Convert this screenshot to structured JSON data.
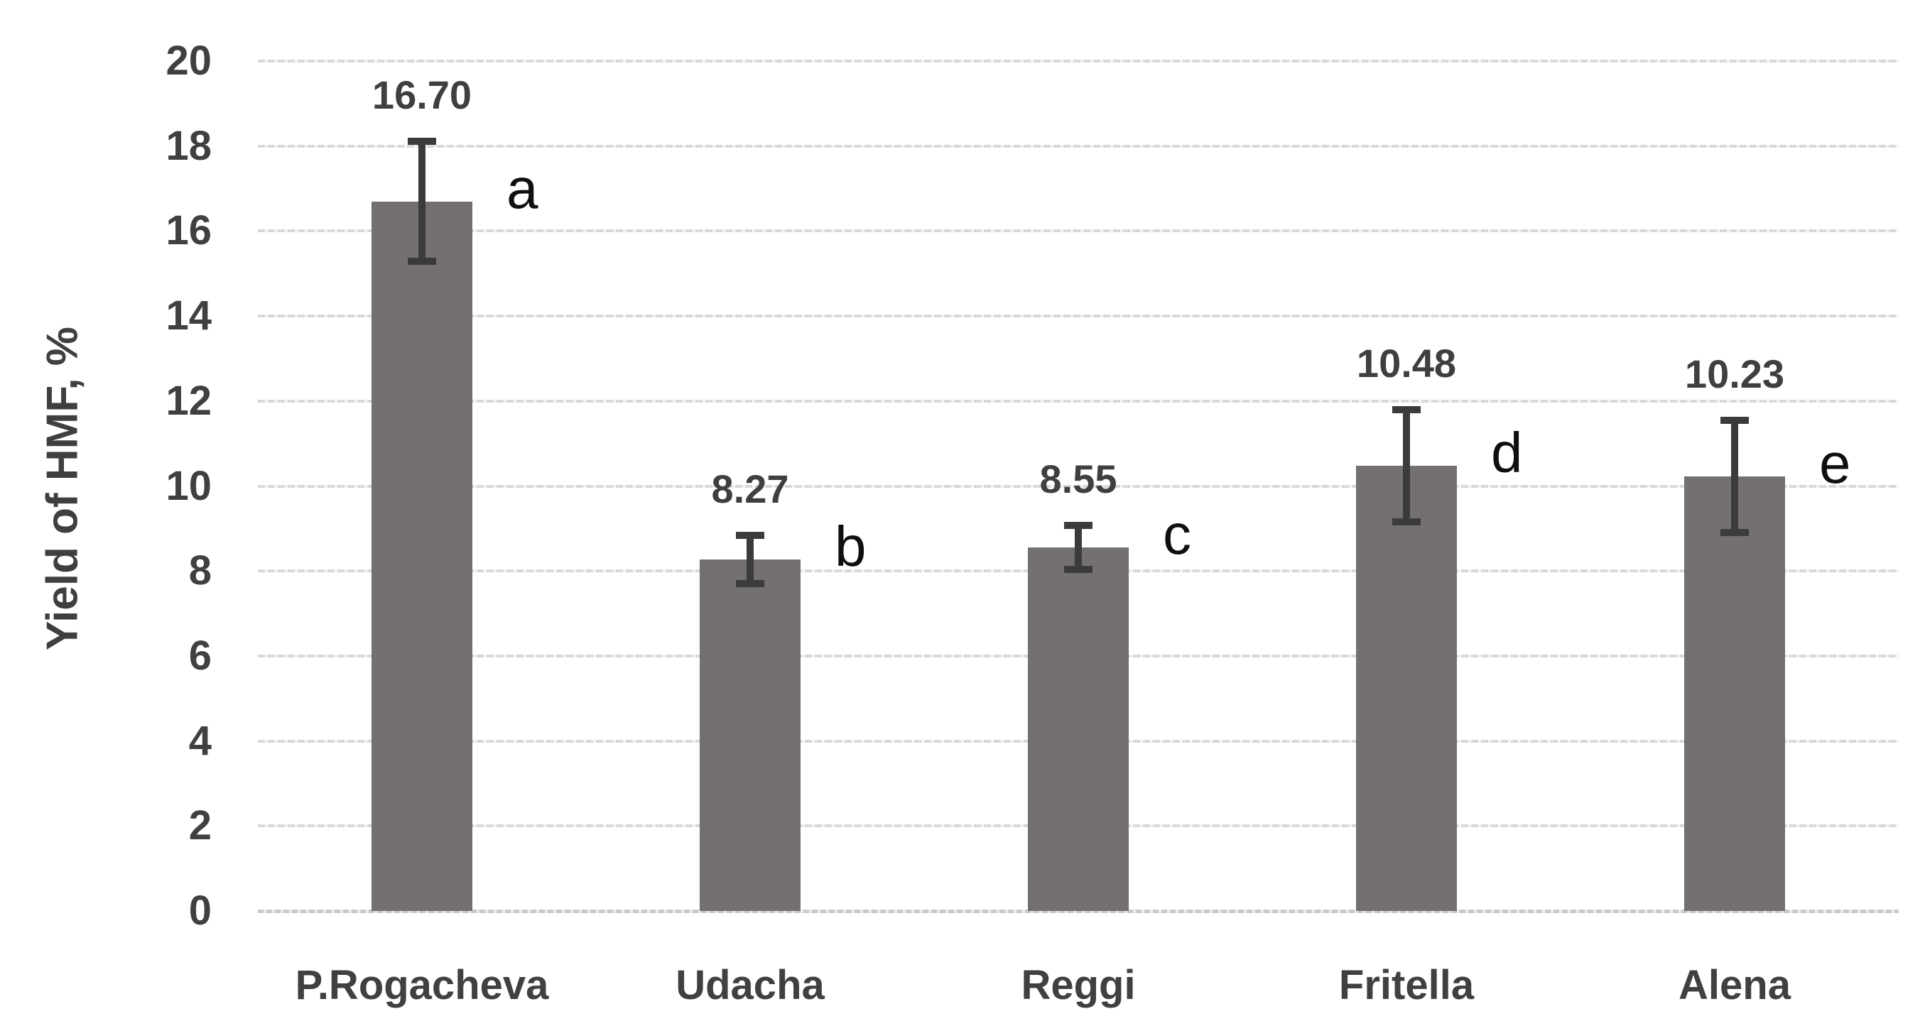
{
  "chart_data": {
    "type": "bar",
    "title": "",
    "ylabel": "Yield of HMF, %",
    "xlabel": "",
    "categories": [
      "P.Rogacheva",
      "Udacha",
      "Reggi",
      "Fritella",
      "Alena"
    ],
    "values": [
      16.7,
      8.27,
      8.55,
      10.48,
      10.23
    ],
    "value_labels": [
      "16.70",
      "8.27",
      "8.55",
      "10.48",
      "10.23"
    ],
    "errors": [
      1.5,
      0.65,
      0.6,
      1.4,
      1.4
    ],
    "sig_letters": [
      "a",
      "b",
      "c",
      "d",
      "e"
    ],
    "ylim": [
      0,
      20
    ],
    "ytick_step": 2,
    "ytick_labels": [
      "0",
      "2",
      "4",
      "6",
      "8",
      "10",
      "12",
      "14",
      "16",
      "18",
      "20"
    ],
    "grid": "horizontal-dotted-light",
    "legend": "none",
    "bar_color": "#747070",
    "error_bar_color": "#3b3b3b",
    "gridline_color": "#d8d8d8",
    "text_color": "#404040",
    "letter_color": "#0f0f0f",
    "background_color": "#ffffff"
  }
}
